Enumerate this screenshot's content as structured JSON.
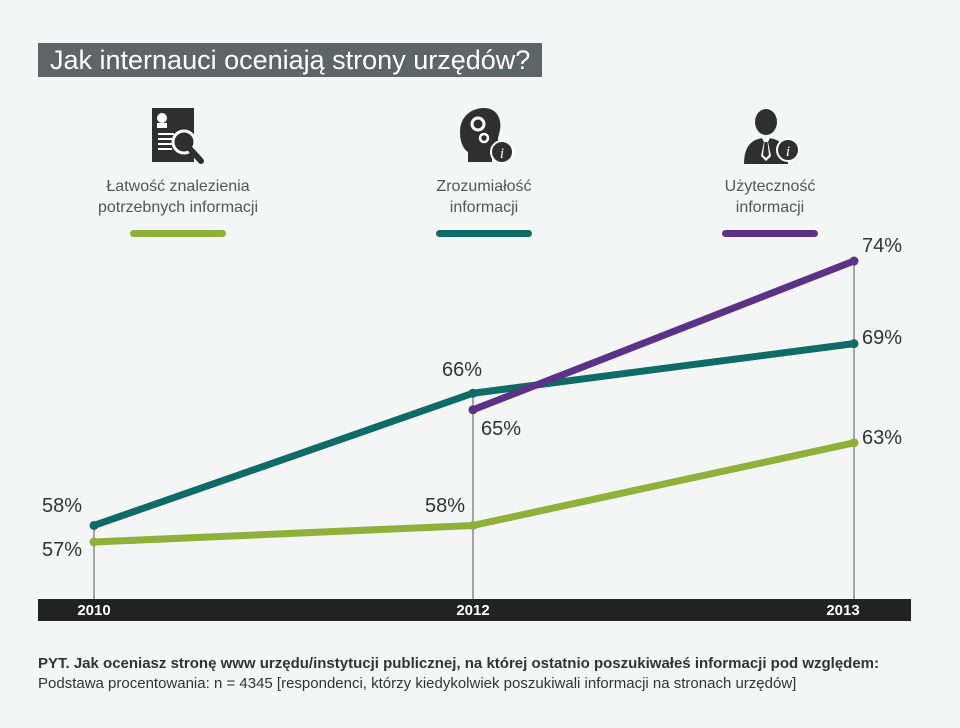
{
  "title": "Jak internauci oceniają strony urzędów?",
  "legend": [
    {
      "line1": "Łatwość znalezienia",
      "line2": "potrzebnych informacji",
      "color": "#8fb13a",
      "icon": "document-search-icon"
    },
    {
      "line1": "Zrozumiałość",
      "line2": "informacji",
      "color": "#0e6b66",
      "icon": "head-gears-info-icon"
    },
    {
      "line1": "Użyteczność",
      "line2": "informacji",
      "color": "#5a3386",
      "icon": "person-info-icon"
    }
  ],
  "chart_data": {
    "type": "line",
    "x": [
      "2010",
      "2012",
      "2013"
    ],
    "series": [
      {
        "name": "Łatwość znalezienia potrzebnych informacji",
        "color": "#8fb13a",
        "values": [
          57,
          58,
          63
        ],
        "labels": [
          "57%",
          "58%",
          "63%"
        ]
      },
      {
        "name": "Zrozumiałość informacji",
        "color": "#0e6b66",
        "values": [
          58,
          66,
          69
        ],
        "labels": [
          "58%",
          "66%",
          "69%"
        ]
      },
      {
        "name": "Użyteczność informacji",
        "color": "#5a3386",
        "values": [
          null,
          65,
          74
        ],
        "labels": [
          "",
          "65%",
          "74%"
        ]
      }
    ],
    "ylim": [
      54,
      75
    ],
    "grid": false,
    "axis_color": "#222222"
  },
  "footer": {
    "question": "PYT. Jak oceniasz stronę www urzędu/instytucji publicznej, na której ostatnio poszukiwałeś informacji pod względem:",
    "base": "Podstawa procentowania: n = 4345 [respondenci, którzy kiedykolwiek poszukiwali informacji na stronach urzędów]"
  }
}
